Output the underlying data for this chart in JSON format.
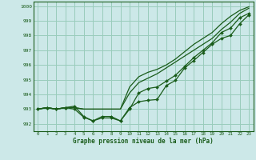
{
  "xlabel": "Graphe pression niveau de la mer (hPa)",
  "background_color": "#cce8e8",
  "grid_color": "#99ccbb",
  "line_color": "#1a5c1a",
  "x_values": [
    0,
    1,
    2,
    3,
    4,
    5,
    6,
    7,
    8,
    9,
    10,
    11,
    12,
    13,
    14,
    15,
    16,
    17,
    18,
    19,
    20,
    21,
    22,
    23
  ],
  "ylim": [
    991.5,
    1000.3
  ],
  "yticks": [
    992,
    993,
    994,
    995,
    996,
    997,
    998,
    999,
    1000
  ],
  "series": [
    [
      993.0,
      993.1,
      993.0,
      993.1,
      993.0,
      992.45,
      992.2,
      992.4,
      992.4,
      992.2,
      993.1,
      993.5,
      993.6,
      993.65,
      994.6,
      994.95,
      995.8,
      996.3,
      996.85,
      997.4,
      997.8,
      998.0,
      998.8,
      999.4
    ],
    [
      993.0,
      993.1,
      993.0,
      993.1,
      993.2,
      992.5,
      992.2,
      992.5,
      992.5,
      992.2,
      993.0,
      994.1,
      994.4,
      994.5,
      994.9,
      995.3,
      995.9,
      996.5,
      997.0,
      997.5,
      998.2,
      998.5,
      999.2,
      999.5
    ],
    [
      993.0,
      993.1,
      993.0,
      993.1,
      993.1,
      993.0,
      993.0,
      993.0,
      993.0,
      993.0,
      994.1,
      994.8,
      995.1,
      995.4,
      995.8,
      996.2,
      996.6,
      997.0,
      997.4,
      997.8,
      998.4,
      998.9,
      999.5,
      999.85
    ],
    [
      993.0,
      993.1,
      993.0,
      993.1,
      993.1,
      993.0,
      993.0,
      993.0,
      993.0,
      993.0,
      994.5,
      995.2,
      995.5,
      995.7,
      996.0,
      996.4,
      996.9,
      997.4,
      997.8,
      998.2,
      998.8,
      999.3,
      999.7,
      999.95
    ]
  ],
  "marker_series": [
    0,
    1
  ],
  "no_marker_series": [
    2,
    3
  ],
  "marker": "D",
  "marker_size": 2.0,
  "linewidth": 0.9
}
